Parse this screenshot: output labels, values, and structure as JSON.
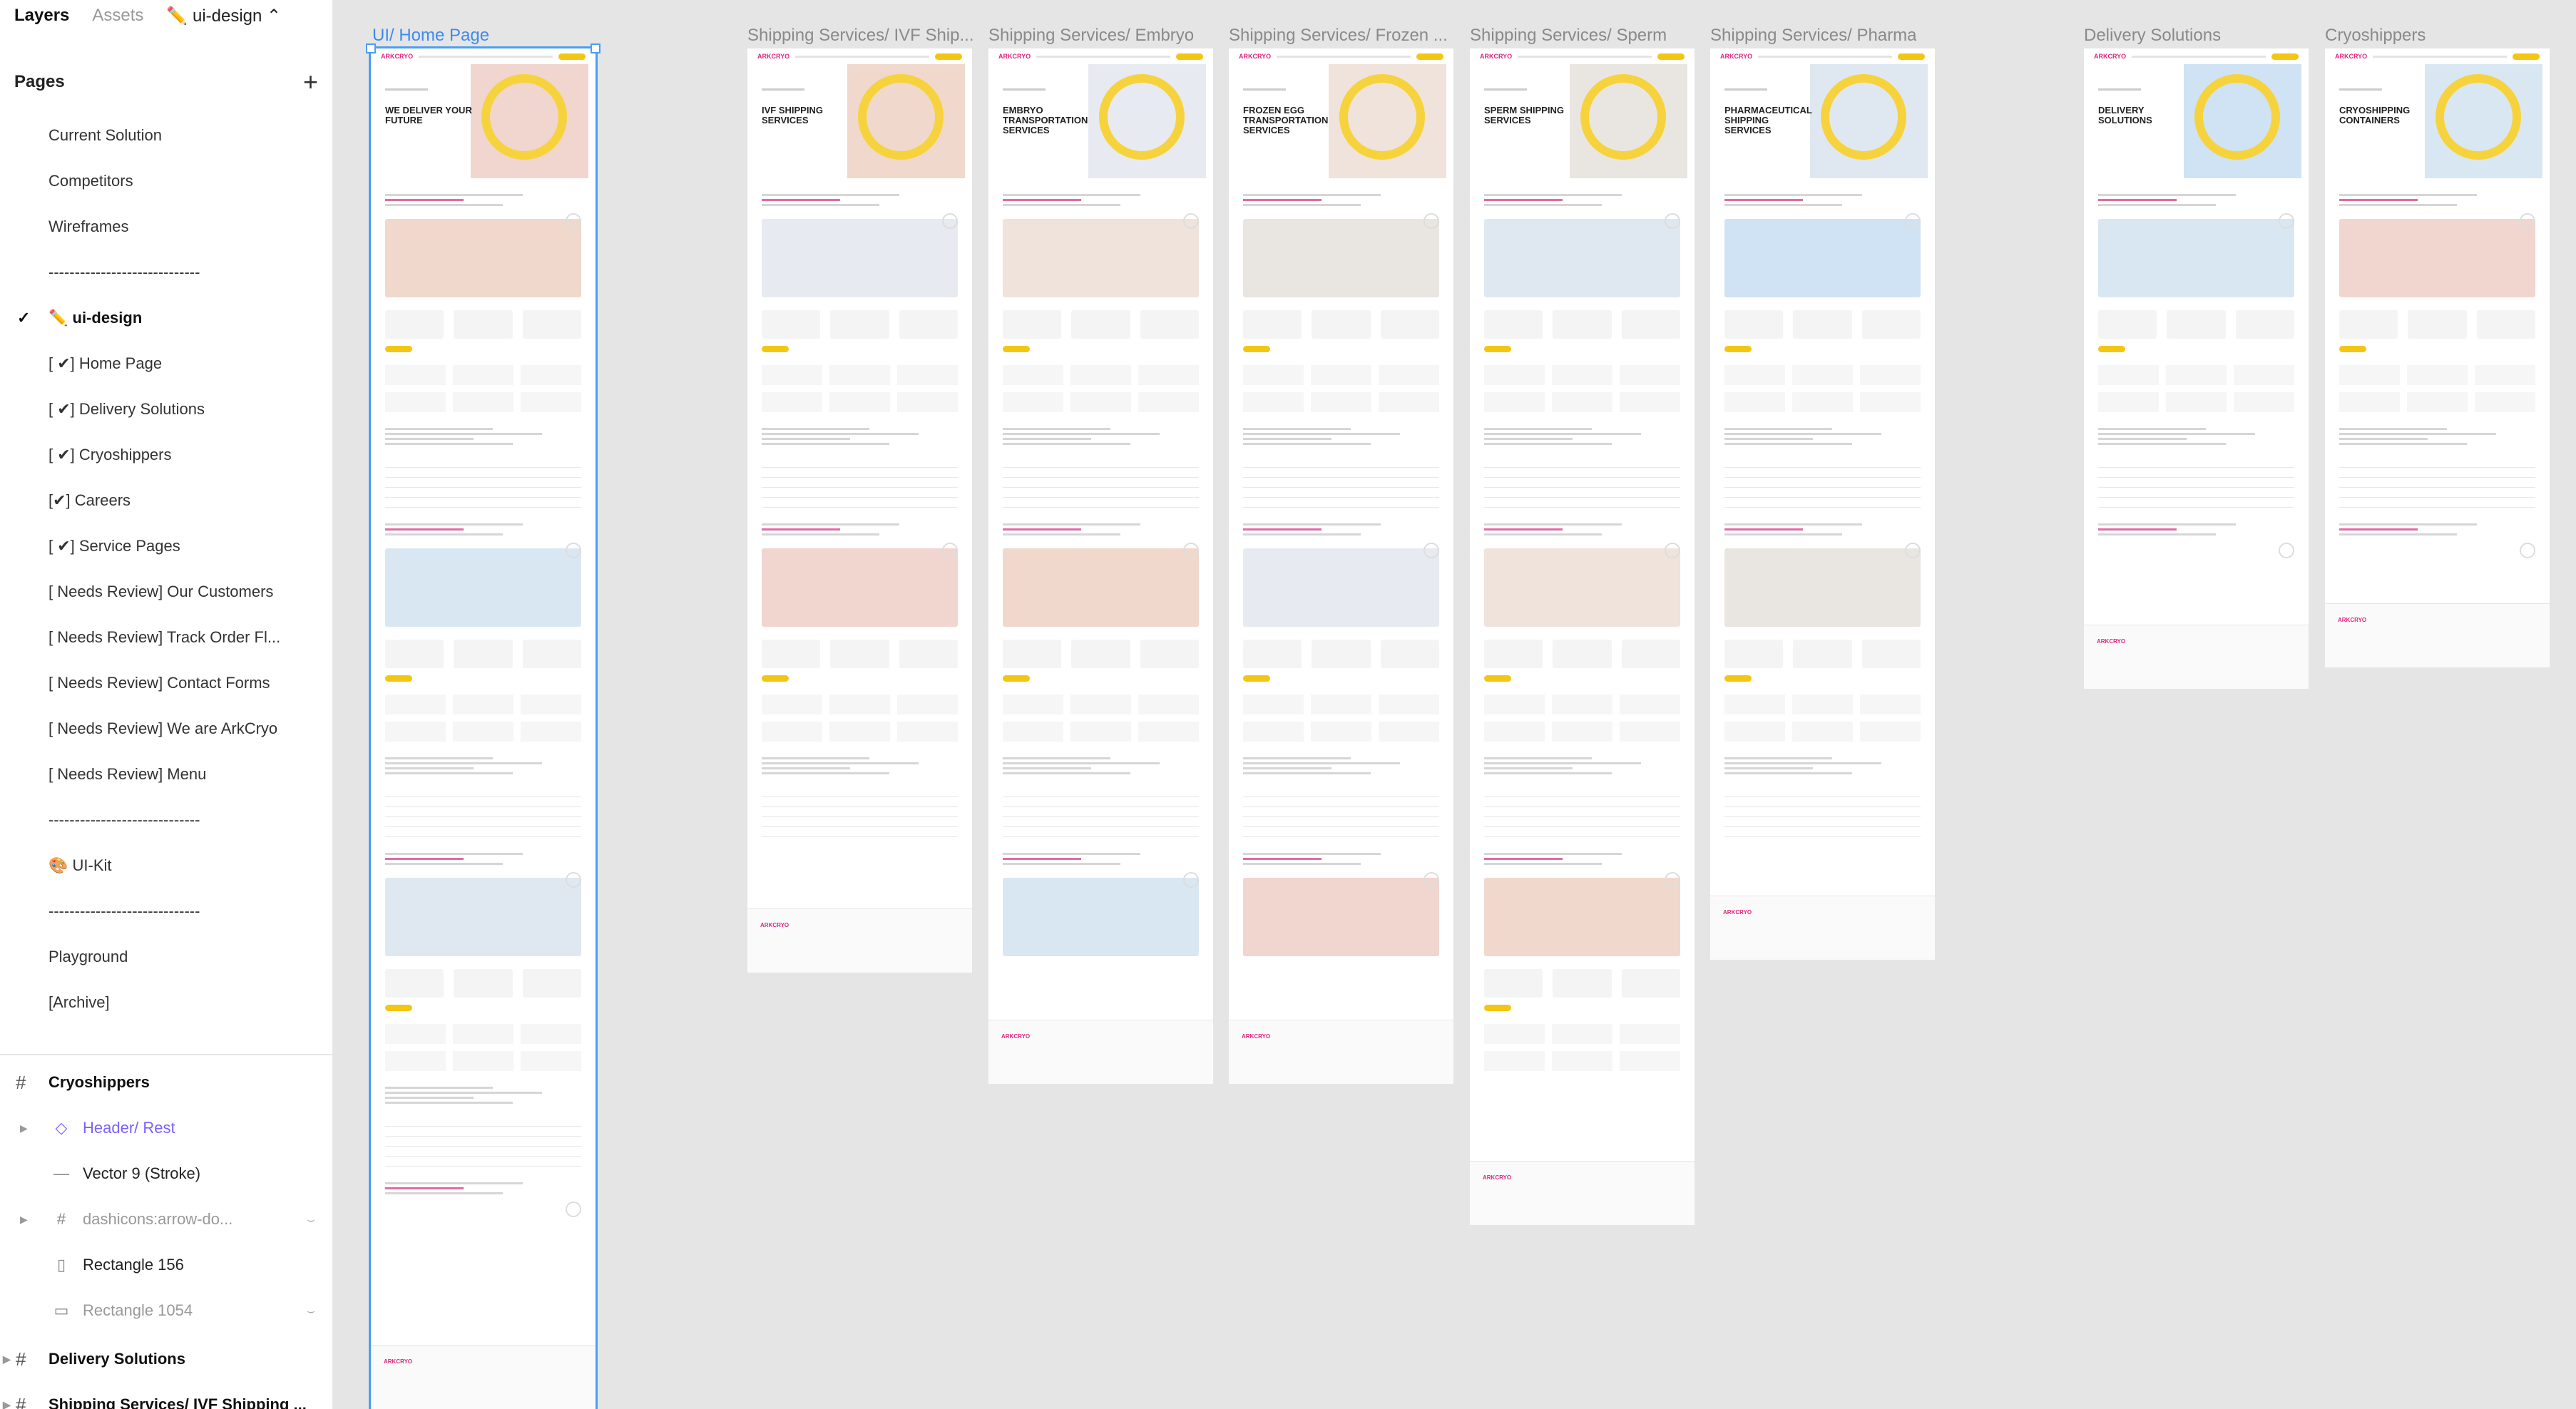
{
  "panel": {
    "tabs": {
      "layers": "Layers",
      "assets": "Assets",
      "file": "✏️ ui-design"
    },
    "pages_title": "Pages",
    "pages": [
      {
        "label": "Current Solution",
        "active": false
      },
      {
        "label": "Competitors",
        "active": false
      },
      {
        "label": "Wireframes",
        "active": false
      },
      {
        "label": "-----------------------------",
        "active": false
      },
      {
        "label": "✏️ ui-design",
        "active": true
      },
      {
        "label": "[ ✔] Home Page",
        "active": false
      },
      {
        "label": "[ ✔] Delivery Solutions",
        "active": false
      },
      {
        "label": "[ ✔] Cryoshippers",
        "active": false
      },
      {
        "label": "[✔] Careers",
        "active": false
      },
      {
        "label": "[ ✔] Service Pages",
        "active": false
      },
      {
        "label": "[ Needs Review] Our Customers",
        "active": false
      },
      {
        "label": "[ Needs Review] Track Order Fl...",
        "active": false
      },
      {
        "label": "[ Needs Review] Contact Forms",
        "active": false
      },
      {
        "label": "[ Needs Review] We are ArkCryo",
        "active": false
      },
      {
        "label": "[ Needs Review] Menu",
        "active": false
      },
      {
        "label": "-----------------------------",
        "active": false
      },
      {
        "label": "🎨 UI-Kit",
        "active": false
      },
      {
        "label": "-----------------------------",
        "active": false
      },
      {
        "label": "Playground",
        "active": false
      },
      {
        "label": "[Archive]",
        "active": false
      }
    ],
    "layers": {
      "group1": "Cryoshippers",
      "rows": [
        {
          "label": "Header/ Rest",
          "icon": "component-icon"
        },
        {
          "label": "Vector 9 (Stroke)",
          "icon": "vector-icon"
        },
        {
          "label": "dashicons:arrow-do...",
          "icon": "frame-icon"
        },
        {
          "label": "Rectangle 156",
          "icon": "rectangle-icon"
        },
        {
          "label": "Rectangle 1054",
          "icon": "rectangle-icon"
        }
      ],
      "group2": "Delivery Solutions",
      "group3": "Shipping Services/ IVF Shipping ..."
    }
  },
  "canvas": {
    "frames": [
      {
        "label": "UI/ Home Page",
        "hero": "WE DELIVER YOUR FUTURE"
      },
      {
        "label": "Shipping Services/ IVF Ship...",
        "hero": "IVF SHIPPING SERVICES"
      },
      {
        "label": "Shipping Services/ Embryo",
        "hero": "EMBRYO TRANSPORTATION SERVICES"
      },
      {
        "label": "Shipping Services/ Frozen ...",
        "hero": "FROZEN EGG TRANSPORTATION SERVICES"
      },
      {
        "label": "Shipping Services/ Sperm",
        "hero": "SPERM SHIPPING SERVICES"
      },
      {
        "label": "Shipping Services/ Pharma",
        "hero": "PHARMACEUTICAL SHIPPING SERVICES"
      },
      {
        "label": "Delivery Solutions",
        "hero": "DELIVERY SOLUTIONS"
      },
      {
        "label": "Cryoshippers",
        "hero": "CRYOSHIPPING CONTAINERS"
      }
    ],
    "brand_logo": "ARKCRYO"
  },
  "colors": {
    "accent_yellow": "#f3c613",
    "accent_pink": "#e0267d",
    "selection_blue": "#4b9ef5"
  }
}
